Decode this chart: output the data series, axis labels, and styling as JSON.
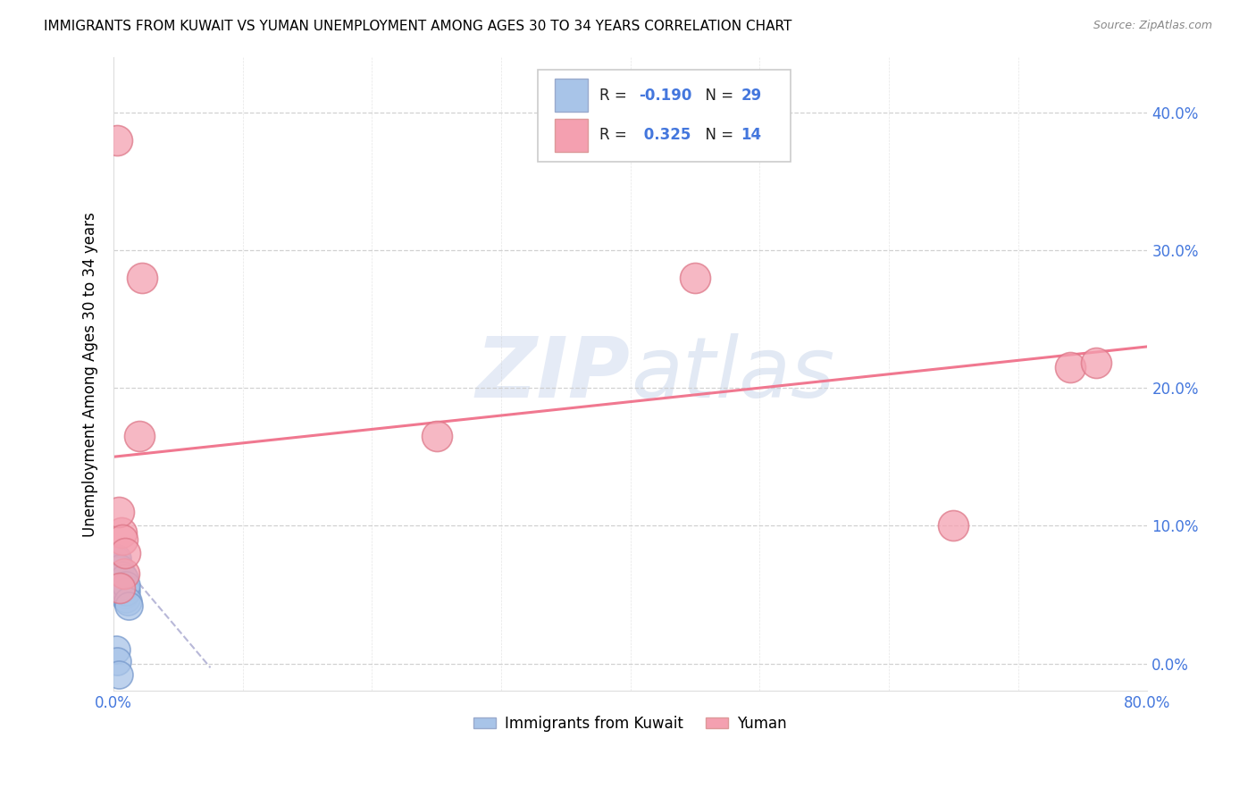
{
  "title": "IMMIGRANTS FROM KUWAIT VS YUMAN UNEMPLOYMENT AMONG AGES 30 TO 34 YEARS CORRELATION CHART",
  "source": "Source: ZipAtlas.com",
  "ylabel": "Unemployment Among Ages 30 to 34 years",
  "legend_labels": [
    "Immigrants from Kuwait",
    "Yuman"
  ],
  "R_blue": -0.19,
  "N_blue": 29,
  "R_pink": 0.325,
  "N_pink": 14,
  "blue_color": "#a8c4e8",
  "pink_color": "#f4a0b0",
  "blue_line_color": "#b8b8d8",
  "pink_line_color": "#f07890",
  "axis_label_color": "#4477dd",
  "xlim": [
    0.0,
    0.8
  ],
  "ylim": [
    -0.02,
    0.44
  ],
  "yticks": [
    0.0,
    0.1,
    0.2,
    0.3,
    0.4
  ],
  "ytick_labels": [
    "0.0%",
    "10.0%",
    "20.0%",
    "30.0%",
    "40.0%"
  ],
  "xticks": [
    0.0,
    0.1,
    0.2,
    0.3,
    0.4,
    0.5,
    0.6,
    0.7,
    0.8
  ],
  "xtick_labels": [
    "0.0%",
    "",
    "",
    "",
    "",
    "",
    "",
    "",
    "80.0%"
  ],
  "blue_scatter_x": [
    0.001,
    0.002,
    0.002,
    0.003,
    0.003,
    0.003,
    0.004,
    0.004,
    0.005,
    0.005,
    0.005,
    0.006,
    0.006,
    0.007,
    0.007,
    0.007,
    0.008,
    0.008,
    0.008,
    0.009,
    0.009,
    0.01,
    0.01,
    0.01,
    0.011,
    0.012,
    0.002,
    0.003,
    0.004
  ],
  "blue_scatter_y": [
    0.072,
    0.068,
    0.075,
    0.065,
    0.07,
    0.076,
    0.062,
    0.068,
    0.058,
    0.063,
    0.069,
    0.056,
    0.061,
    0.054,
    0.059,
    0.064,
    0.052,
    0.057,
    0.062,
    0.05,
    0.055,
    0.047,
    0.052,
    0.057,
    0.045,
    0.042,
    0.01,
    0.002,
    -0.008
  ],
  "pink_scatter_x": [
    0.003,
    0.02,
    0.022,
    0.25,
    0.45,
    0.65,
    0.74,
    0.76,
    0.006,
    0.008,
    0.004,
    0.007,
    0.005,
    0.009
  ],
  "pink_scatter_y": [
    0.38,
    0.165,
    0.28,
    0.165,
    0.28,
    0.1,
    0.215,
    0.218,
    0.095,
    0.065,
    0.11,
    0.09,
    0.055,
    0.08
  ],
  "blue_line_x": [
    0.0,
    0.075
  ],
  "blue_line_y": [
    0.08,
    -0.003
  ],
  "pink_line_x": [
    0.0,
    0.8
  ],
  "pink_line_y": [
    0.15,
    0.23
  ],
  "watermark_zip": "ZIP",
  "watermark_atlas": "atlas",
  "bg_color": "#ffffff",
  "scatter_size_blue": 500,
  "scatter_size_pink": 600,
  "scatter_lw": 1.2
}
